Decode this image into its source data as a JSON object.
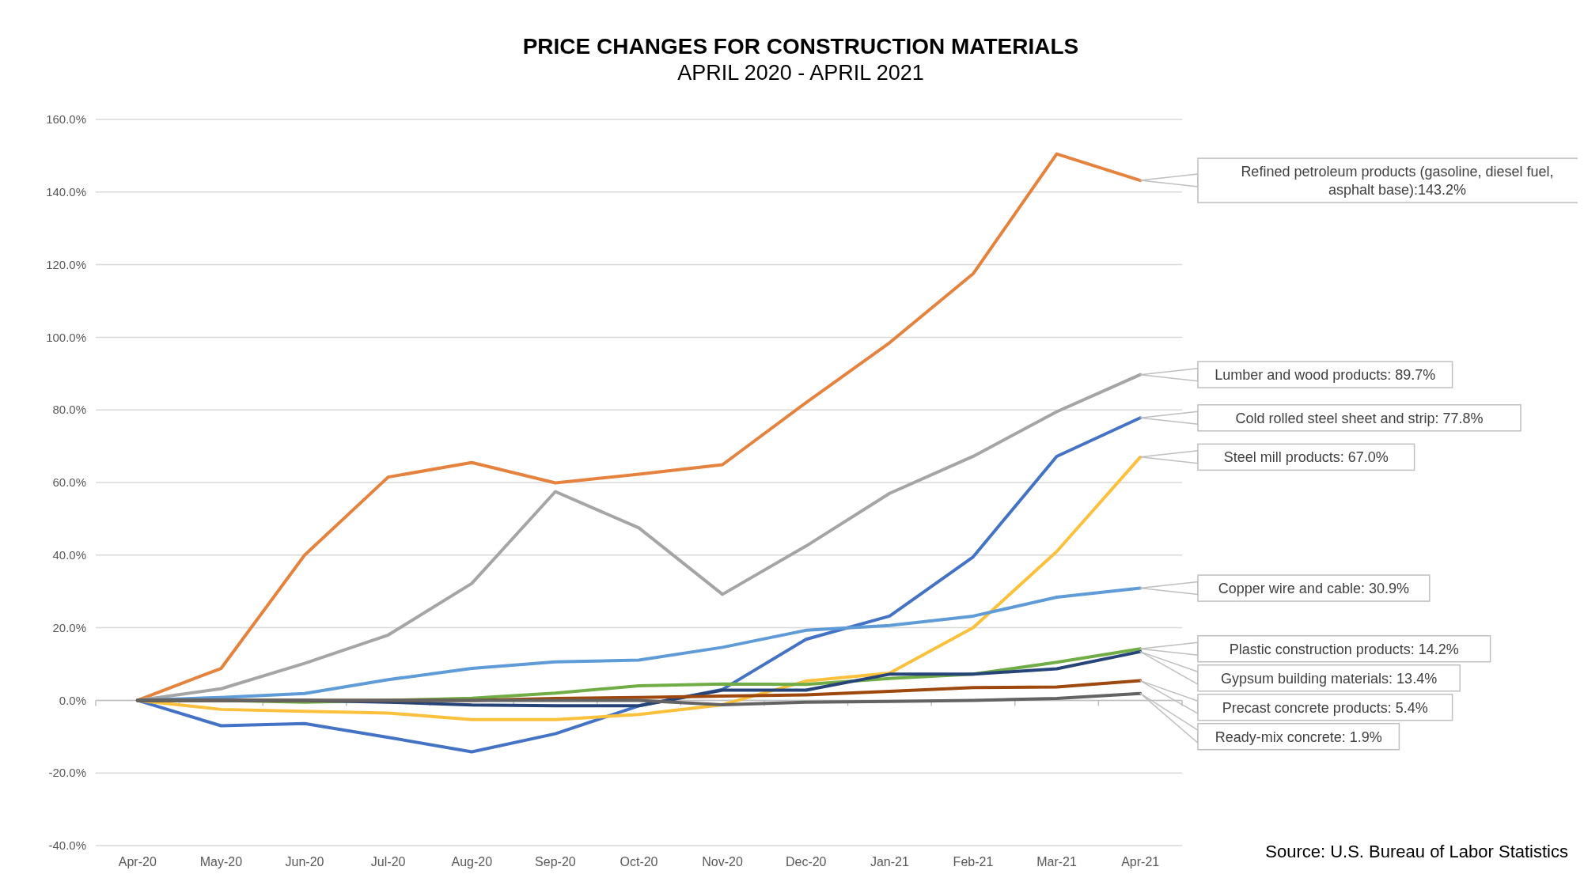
{
  "chart_data": {
    "type": "line",
    "title": "PRICE CHANGES FOR CONSTRUCTION MATERIALS",
    "subtitle": "APRIL 2020 - APRIL 2021",
    "categories": [
      "Apr-20",
      "May-20",
      "Jun-20",
      "Jul-20",
      "Aug-20",
      "Sep-20",
      "Oct-20",
      "Nov-20",
      "Dec-20",
      "Jan-21",
      "Feb-21",
      "Mar-21",
      "Apr-21"
    ],
    "series": [
      {
        "color": "#e5823d",
        "values": [
          0,
          8.8,
          40,
          61.5,
          65.5,
          59.9,
          62.3,
          64.9,
          82,
          98.5,
          117.5,
          150.5,
          143.2
        ]
      },
      {
        "color": "#a5a5a5",
        "values": [
          0,
          3.2,
          10.2,
          18,
          32.2,
          57.5,
          47.5,
          29.2,
          42.5,
          57,
          67.2,
          79.5,
          89.7
        ]
      },
      {
        "color": "#4472c4",
        "values": [
          0,
          -7,
          -6.4,
          -10.2,
          -14.2,
          -9.2,
          -1.5,
          3,
          16.8,
          23.2,
          39.5,
          67.2,
          77.8
        ]
      },
      {
        "color": "#fbc13c",
        "values": [
          0,
          -2.5,
          -3,
          -3.5,
          -5.3,
          -5.3,
          -3.9,
          -1.2,
          5.3,
          7.5,
          20,
          41,
          67
        ]
      },
      {
        "color": "#5f9bd6",
        "values": [
          0,
          0.8,
          1.9,
          5.7,
          8.8,
          10.6,
          11.1,
          14.6,
          19.3,
          20.6,
          23.2,
          28.4,
          30.9
        ]
      },
      {
        "color": "#70ad47",
        "values": [
          0,
          0,
          -0.5,
          0,
          0.6,
          2,
          4,
          4.5,
          4.4,
          6,
          7.2,
          10.5,
          14.2
        ]
      },
      {
        "color": "#264478",
        "values": [
          0,
          0,
          0,
          -0.5,
          -1.3,
          -1.5,
          -1.5,
          2.8,
          2.8,
          7.2,
          7.2,
          8.7,
          13.4
        ]
      },
      {
        "color": "#9e480e",
        "values": [
          0,
          0,
          0,
          0,
          0,
          0.5,
          0.8,
          1.2,
          1.5,
          2.5,
          3.5,
          3.7,
          5.4
        ]
      },
      {
        "color": "#636363",
        "values": [
          0,
          0,
          0,
          0,
          0,
          0,
          0,
          -1.2,
          -0.5,
          -0.3,
          0,
          0.5,
          1.9
        ]
      }
    ],
    "ylim": [
      -40,
      160
    ],
    "yticks": [
      {
        "value": -40,
        "label": "-40.0%"
      },
      {
        "value": -20,
        "label": "-20.0%"
      },
      {
        "value": 0,
        "label": "0.0%"
      },
      {
        "value": 20,
        "label": "20.0%"
      },
      {
        "value": 40,
        "label": "40.0%"
      },
      {
        "value": 60,
        "label": "60.0%"
      },
      {
        "value": 80,
        "label": "80.0%"
      },
      {
        "value": 100,
        "label": "100.0%"
      },
      {
        "value": 120,
        "label": "120.0%"
      },
      {
        "value": 140,
        "label": "140.0%"
      },
      {
        "value": 160,
        "label": "160.0%"
      }
    ],
    "grid": "y",
    "marker": "none",
    "line_style": "solid",
    "annotations": [
      "Source: U.S. Bureau of Labor Statistics",
      "Refined petroleum products (gasoline, diesel fuel, asphalt base):143.2%",
      "Lumber and wood products: 89.7%",
      "Cold rolled steel sheet and strip: 77.8%",
      "Steel mill products: 67.0%",
      "Copper wire and cable: 30.9%",
      "Plastic construction products: 14.2%",
      "Gypsum building materials: 13.4%",
      "Precast concrete products: 5.4%",
      "Ready-mix concrete: 1.9%"
    ]
  }
}
